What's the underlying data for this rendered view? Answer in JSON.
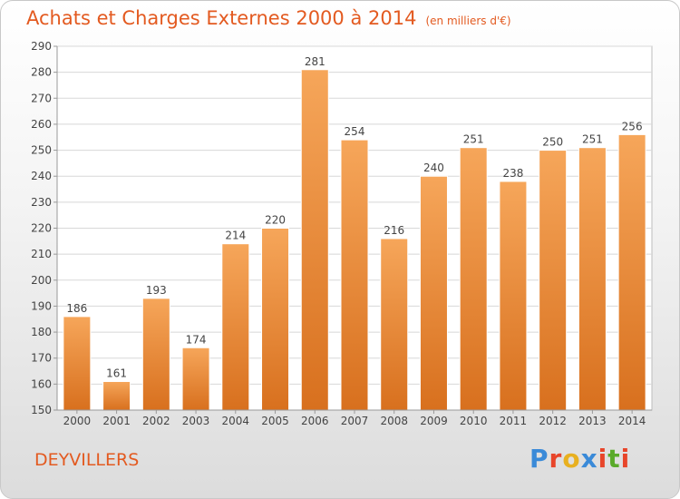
{
  "header": {
    "title": "Achats et Charges Externes 2000 à 2014",
    "subtitle": "(en milliers d'€)"
  },
  "footer": {
    "commune": "DEYVILLERS",
    "logo": "Proxiti",
    "logo_colors": [
      "#3a8ad8",
      "#e8452a",
      "#e8b020",
      "#3a8ad8",
      "#e8452a",
      "#5aaa2a",
      "#e8452a"
    ]
  },
  "colors": {
    "bar_top": "#f6a65a",
    "bar_bottom": "#d8701e",
    "title": "#e35a20",
    "grid": "#d8d8d8"
  },
  "chart_data": {
    "type": "bar",
    "categories": [
      "2000",
      "2001",
      "2002",
      "2003",
      "2004",
      "2005",
      "2006",
      "2007",
      "2008",
      "2009",
      "2010",
      "2011",
      "2012",
      "2013",
      "2014"
    ],
    "values": [
      186,
      161,
      193,
      174,
      214,
      220,
      281,
      254,
      216,
      240,
      251,
      238,
      250,
      251,
      256
    ],
    "ylim": [
      150,
      290
    ],
    "yticks": [
      150,
      160,
      170,
      180,
      190,
      200,
      210,
      220,
      230,
      240,
      250,
      260,
      270,
      280,
      290
    ],
    "grid": true
  }
}
